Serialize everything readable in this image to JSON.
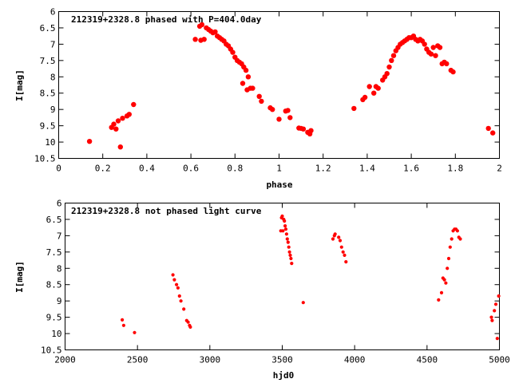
{
  "chart_data": [
    {
      "type": "scatter",
      "title": "212319+2328.8 phased with P=404.0day",
      "xlabel": "phase",
      "ylabel": "I[mag]",
      "xlim": [
        0,
        2
      ],
      "ylim": [
        10.5,
        6
      ],
      "y_inverted": true,
      "xticks": [
        "0",
        "0.2",
        "0.4",
        "0.6",
        "0.8",
        "1",
        "1.2",
        "1.4",
        "1.6",
        "1.8",
        "2"
      ],
      "yticks": [
        "6",
        "6.5",
        "7",
        "7.5",
        "8",
        "8.5",
        "9",
        "9.5",
        "10",
        "10.5"
      ],
      "marker_color": "#ff0000",
      "grid": false,
      "points": [
        [
          0.14,
          9.98
        ],
        [
          0.24,
          9.55
        ],
        [
          0.25,
          9.45
        ],
        [
          0.26,
          9.6
        ],
        [
          0.27,
          9.35
        ],
        [
          0.28,
          10.15
        ],
        [
          0.29,
          9.27
        ],
        [
          0.31,
          9.2
        ],
        [
          0.32,
          9.15
        ],
        [
          0.34,
          8.85
        ],
        [
          0.62,
          6.85
        ],
        [
          0.64,
          6.45
        ],
        [
          0.645,
          6.88
        ],
        [
          0.65,
          6.4
        ],
        [
          0.66,
          6.85
        ],
        [
          0.67,
          6.5
        ],
        [
          0.68,
          6.55
        ],
        [
          0.69,
          6.6
        ],
        [
          0.7,
          6.65
        ],
        [
          0.71,
          6.62
        ],
        [
          0.72,
          6.75
        ],
        [
          0.73,
          6.8
        ],
        [
          0.74,
          6.85
        ],
        [
          0.75,
          6.9
        ],
        [
          0.76,
          7.0
        ],
        [
          0.77,
          7.05
        ],
        [
          0.78,
          7.15
        ],
        [
          0.79,
          7.25
        ],
        [
          0.8,
          7.4
        ],
        [
          0.81,
          7.5
        ],
        [
          0.82,
          7.55
        ],
        [
          0.83,
          7.6
        ],
        [
          0.835,
          8.2
        ],
        [
          0.84,
          7.7
        ],
        [
          0.85,
          7.8
        ],
        [
          0.855,
          8.4
        ],
        [
          0.86,
          8.0
        ],
        [
          0.87,
          8.35
        ],
        [
          0.88,
          8.35
        ],
        [
          0.91,
          8.6
        ],
        [
          0.92,
          8.75
        ],
        [
          0.96,
          8.95
        ],
        [
          0.97,
          9.0
        ],
        [
          1.0,
          9.3
        ],
        [
          1.03,
          9.05
        ],
        [
          1.04,
          9.03
        ],
        [
          1.05,
          9.25
        ],
        [
          1.09,
          9.57
        ],
        [
          1.1,
          9.58
        ],
        [
          1.11,
          9.6
        ],
        [
          1.13,
          9.7
        ],
        [
          1.14,
          9.75
        ],
        [
          1.145,
          9.65
        ],
        [
          1.34,
          8.97
        ],
        [
          1.38,
          8.7
        ],
        [
          1.39,
          8.63
        ],
        [
          1.41,
          8.3
        ],
        [
          1.43,
          8.5
        ],
        [
          1.44,
          8.3
        ],
        [
          1.45,
          8.35
        ],
        [
          1.47,
          8.1
        ],
        [
          1.48,
          8.0
        ],
        [
          1.49,
          7.9
        ],
        [
          1.5,
          7.7
        ],
        [
          1.51,
          7.5
        ],
        [
          1.52,
          7.35
        ],
        [
          1.53,
          7.2
        ],
        [
          1.54,
          7.1
        ],
        [
          1.55,
          7.0
        ],
        [
          1.56,
          6.95
        ],
        [
          1.57,
          6.9
        ],
        [
          1.58,
          6.85
        ],
        [
          1.59,
          6.8
        ],
        [
          1.6,
          6.8
        ],
        [
          1.61,
          6.75
        ],
        [
          1.62,
          6.85
        ],
        [
          1.63,
          6.9
        ],
        [
          1.64,
          6.85
        ],
        [
          1.65,
          6.9
        ],
        [
          1.66,
          7.0
        ],
        [
          1.67,
          7.15
        ],
        [
          1.68,
          7.25
        ],
        [
          1.69,
          7.3
        ],
        [
          1.7,
          7.1
        ],
        [
          1.71,
          7.35
        ],
        [
          1.72,
          7.05
        ],
        [
          1.73,
          7.1
        ],
        [
          1.74,
          7.6
        ],
        [
          1.75,
          7.55
        ],
        [
          1.76,
          7.6
        ],
        [
          1.78,
          7.8
        ],
        [
          1.79,
          7.85
        ],
        [
          1.95,
          9.58
        ],
        [
          1.97,
          9.72
        ]
      ]
    },
    {
      "type": "scatter",
      "title": "212319+2328.8 not phased light curve",
      "xlabel": "hjd0",
      "ylabel": "I[mag]",
      "xlim": [
        2000,
        5000
      ],
      "ylim": [
        10.5,
        6
      ],
      "y_inverted": true,
      "xticks": [
        "2000",
        "2500",
        "3000",
        "3500",
        "4000",
        "4500",
        "5000"
      ],
      "yticks": [
        "6",
        "6.5",
        "7",
        "7.5",
        "8",
        "8.5",
        "9",
        "9.5",
        "10",
        "10.5"
      ],
      "marker_color": "#ff0000",
      "grid": false,
      "points": [
        [
          2395,
          9.58
        ],
        [
          2405,
          9.75
        ],
        [
          2480,
          9.97
        ],
        [
          2745,
          8.2
        ],
        [
          2755,
          8.35
        ],
        [
          2770,
          8.5
        ],
        [
          2780,
          8.6
        ],
        [
          2790,
          8.85
        ],
        [
          2800,
          9.0
        ],
        [
          2820,
          9.25
        ],
        [
          2840,
          9.6
        ],
        [
          2850,
          9.65
        ],
        [
          2860,
          9.75
        ],
        [
          2865,
          9.8
        ],
        [
          3490,
          6.85
        ],
        [
          3495,
          6.45
        ],
        [
          3500,
          6.4
        ],
        [
          3505,
          6.85
        ],
        [
          3510,
          6.5
        ],
        [
          3515,
          6.55
        ],
        [
          3520,
          6.7
        ],
        [
          3525,
          6.8
        ],
        [
          3530,
          6.95
        ],
        [
          3535,
          7.1
        ],
        [
          3540,
          7.2
        ],
        [
          3545,
          7.35
        ],
        [
          3550,
          7.5
        ],
        [
          3555,
          7.6
        ],
        [
          3560,
          7.7
        ],
        [
          3565,
          7.85
        ],
        [
          3645,
          9.05
        ],
        [
          3850,
          7.1
        ],
        [
          3860,
          7.0
        ],
        [
          3865,
          6.95
        ],
        [
          3890,
          7.05
        ],
        [
          3900,
          7.15
        ],
        [
          3910,
          7.35
        ],
        [
          3920,
          7.5
        ],
        [
          3930,
          7.6
        ],
        [
          3940,
          7.8
        ],
        [
          4580,
          8.97
        ],
        [
          4600,
          8.75
        ],
        [
          4610,
          8.3
        ],
        [
          4620,
          8.35
        ],
        [
          4630,
          8.45
        ],
        [
          4640,
          8.0
        ],
        [
          4650,
          7.7
        ],
        [
          4660,
          7.35
        ],
        [
          4670,
          7.1
        ],
        [
          4680,
          6.85
        ],
        [
          4690,
          6.8
        ],
        [
          4700,
          6.8
        ],
        [
          4710,
          6.85
        ],
        [
          4720,
          7.05
        ],
        [
          4730,
          7.1
        ],
        [
          4945,
          9.5
        ],
        [
          4950,
          9.6
        ],
        [
          4965,
          9.3
        ],
        [
          4975,
          9.1
        ],
        [
          4985,
          10.15
        ],
        [
          4995,
          8.85
        ]
      ]
    }
  ]
}
